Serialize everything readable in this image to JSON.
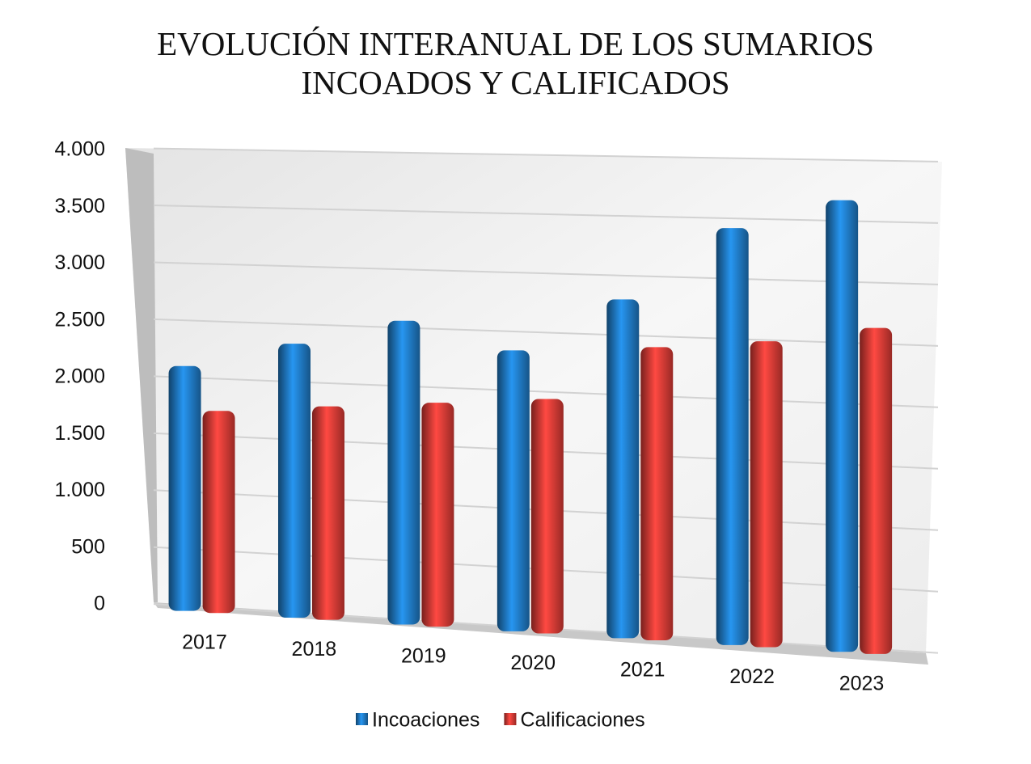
{
  "chart_data": {
    "type": "bar",
    "title": "EVOLUCIÓN INTERANUAL DE LOS SUMARIOS INCOADOS Y CALIFICADOS",
    "categories": [
      "2017",
      "2018",
      "2019",
      "2020",
      "2021",
      "2022",
      "2023"
    ],
    "series": [
      {
        "name": "Incoaciones",
        "color": "#1f78c1",
        "values": [
          2100,
          2330,
          2560,
          2340,
          2800,
          3420,
          3670
        ]
      },
      {
        "name": "Calificaciones",
        "color": "#d93a35",
        "values": [
          1720,
          1800,
          1870,
          1940,
          2410,
          2490,
          2630
        ]
      }
    ],
    "ylim": [
      0,
      4000
    ],
    "yticks": [
      0,
      500,
      {
        "value": 1000,
        "label": "1.000"
      },
      {
        "value": 1500,
        "label": "1.500"
      },
      {
        "value": 2000,
        "label": "2.000"
      },
      {
        "value": 2500,
        "label": "2.500"
      },
      {
        "value": 3000,
        "label": "3.000"
      },
      {
        "value": 3500,
        "label": "3.500"
      },
      {
        "value": 4000,
        "label": "4.000"
      }
    ],
    "grid": true,
    "legend": "bottom"
  }
}
